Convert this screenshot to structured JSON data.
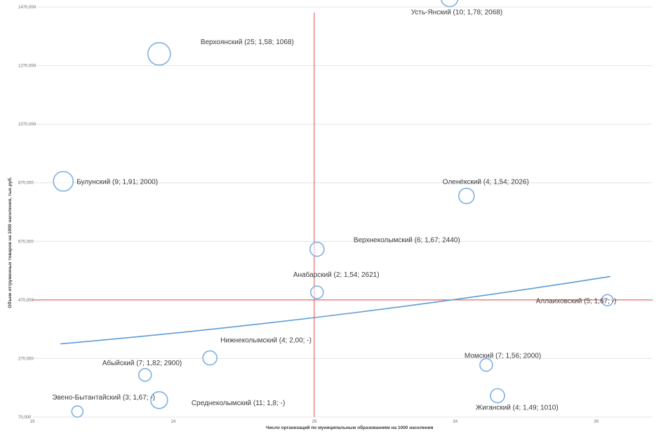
{
  "chart_data": {
    "type": "scatter",
    "xlabel": "Число организаций по муниципальным образованиям на 1000 населения",
    "ylabel": "Объем отгруженных товаров на 1000 населения, тыс.руб.",
    "xlim": [
      19,
      41
    ],
    "ylim": [
      70000,
      1470000
    ],
    "x_ticks": [
      "19",
      "24",
      "29",
      "34",
      "39"
    ],
    "y_ticks": [
      "1470,000",
      "1270,000",
      "1070,000",
      "870,000",
      "670,000",
      "470,000",
      "270,000",
      "70,000"
    ],
    "grid": true,
    "ref_lines": {
      "x": 29,
      "y": 470000,
      "color": "#e8474b"
    },
    "trendline": {
      "x": [
        20,
        39.5
      ],
      "y": [
        320000,
        550000
      ],
      "color": "#5b9bd5"
    },
    "bubble_color": "#7fb0e0",
    "points": [
      {
        "label": "Усть-Янский (10; 1,78; 2068)",
        "x": 33.8,
        "y": 1500000,
        "size": 12
      },
      {
        "label": "Верхоянский (25; 1,58; 1068)",
        "x": 23.5,
        "y": 1310000,
        "size": 16
      },
      {
        "label": "Булунский (9; 1,91; 2000)",
        "x": 20.1,
        "y": 875000,
        "size": 14
      },
      {
        "label": "Оленёкский (4; 1,54; 2026)",
        "x": 34.4,
        "y": 825000,
        "size": 11
      },
      {
        "label": "Верхнеколымский (6; 1,67; 2440)",
        "x": 29.1,
        "y": 643000,
        "size": 10
      },
      {
        "label": "Анабарский (2; 1,54; 2621)",
        "x": 29.1,
        "y": 496000,
        "size": 9
      },
      {
        "label": "Аллаиховский (5; 1,67; -)",
        "x": 39.4,
        "y": 469000,
        "size": 8
      },
      {
        "label": "Нижнеколымский (4; 2,00; -)",
        "x": 25.3,
        "y": 272000,
        "size": 10
      },
      {
        "label": "Абыйский (7; 1,82; 2900)",
        "x": 23.0,
        "y": 214000,
        "size": 9
      },
      {
        "label": "Момский (7; 1,56; 2000)",
        "x": 35.1,
        "y": 248000,
        "size": 9
      },
      {
        "label": "Эвено-Бытантайский (3; 1,67; -)",
        "x": 20.6,
        "y": 89000,
        "size": 8
      },
      {
        "label": "Среднеколымский (11; 1,8; -)",
        "x": 23.5,
        "y": 128000,
        "size": 12
      },
      {
        "label": "Жиганский (4; 1,49; 1010)",
        "x": 35.5,
        "y": 143000,
        "size": 10
      }
    ]
  }
}
